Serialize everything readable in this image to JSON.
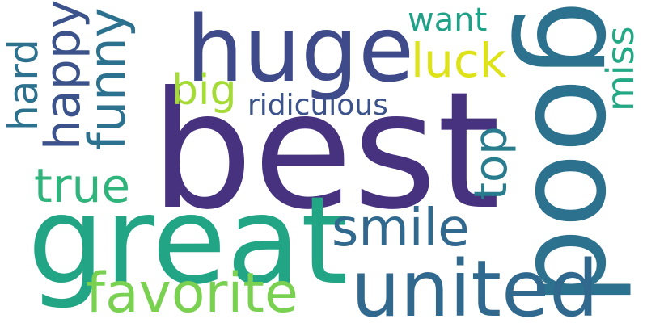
{
  "word_cloud": {
    "words": [
      {
        "key": "best",
        "text": "best",
        "color": "#46327e"
      },
      {
        "key": "great",
        "text": "great",
        "color": "#21a585"
      },
      {
        "key": "good",
        "text": "good",
        "color": "#2c728e"
      },
      {
        "key": "huge",
        "text": "huge",
        "color": "#3e4a89"
      },
      {
        "key": "united",
        "text": "united",
        "color": "#31688e"
      },
      {
        "key": "favorite",
        "text": "favorite",
        "color": "#7ad151"
      },
      {
        "key": "smile",
        "text": "smile",
        "color": "#31688e"
      },
      {
        "key": "funny",
        "text": "funny",
        "color": "#2c728e"
      },
      {
        "key": "happy",
        "text": "happy",
        "color": "#3b528b"
      },
      {
        "key": "true",
        "text": "true",
        "color": "#2fb47c"
      },
      {
        "key": "luck",
        "text": "luck",
        "color": "#dde318"
      },
      {
        "key": "big",
        "text": "big",
        "color": "#a5db36"
      },
      {
        "key": "top",
        "text": "top",
        "color": "#287c8e"
      },
      {
        "key": "hard",
        "text": "hard",
        "color": "#2c728e"
      },
      {
        "key": "miss",
        "text": "miss",
        "color": "#22a884"
      },
      {
        "key": "want",
        "text": "want",
        "color": "#1fa187"
      },
      {
        "key": "ridiculous",
        "text": "ridiculous",
        "color": "#3b528b"
      }
    ]
  },
  "background_color": "#ffffff"
}
